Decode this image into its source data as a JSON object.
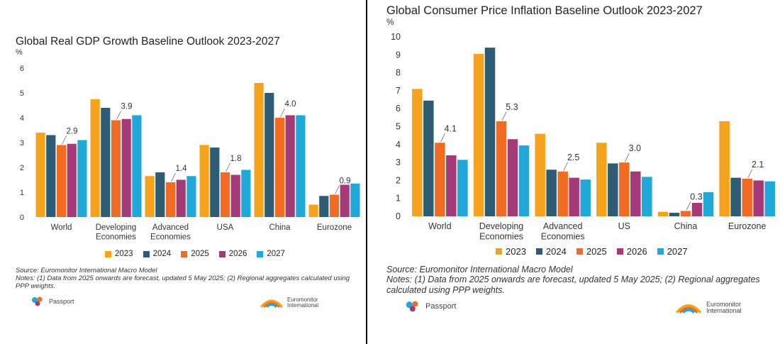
{
  "charts": [
    {
      "title": "Global Real GDP Growth Baseline Outlook 2023-2027",
      "unit": "%",
      "source": "Source: Euromonitor International Macro Model",
      "notes": "Notes: (1) Data from 2025 onwards are forecast, updated 5 May 2025; (2) Regional aggregates calculated using PPP weights.",
      "logos": {
        "passport": "Passport",
        "euromonitor_line1": "Euromonitor",
        "euromonitor_line2": "International"
      }
    },
    {
      "title": "Global Consumer Price Inflation Baseline Outlook 2023-2027",
      "unit": "%",
      "source": "Source: Euromonitor International Macro Model",
      "notes": "Notes: (1) Data from 2025 onwards are forecast, updated 5 May 2025; (2) Regional aggregates calculated using PPP weights.",
      "logos": {
        "passport": "Passport",
        "euromonitor_line1": "Euromonitor",
        "euromonitor_line2": "International"
      }
    }
  ],
  "chart_data": [
    {
      "type": "bar",
      "title": "Global Real GDP Growth Baseline Outlook 2023-2027",
      "ylabel": "%",
      "categories": [
        "World",
        "Developing\nEconomies",
        "Advanced\nEconomies",
        "USA",
        "China",
        "Eurozone"
      ],
      "ylim": [
        0,
        6
      ],
      "yticks": [
        0,
        1,
        2,
        3,
        4,
        5,
        6
      ],
      "grid": false,
      "legend_position": "bottom",
      "series": [
        {
          "name": "2023",
          "color": "#F5A21D",
          "values": [
            3.4,
            4.75,
            1.65,
            2.9,
            5.4,
            0.5
          ]
        },
        {
          "name": "2024",
          "color": "#2E5C74",
          "values": [
            3.3,
            4.4,
            1.8,
            2.8,
            5.0,
            0.85
          ]
        },
        {
          "name": "2025",
          "color": "#F26B22",
          "values": [
            2.9,
            3.9,
            1.4,
            1.8,
            4.0,
            0.9
          ]
        },
        {
          "name": "2026",
          "color": "#A43A78",
          "values": [
            2.95,
            3.95,
            1.5,
            1.7,
            4.1,
            1.3
          ]
        },
        {
          "name": "2027",
          "color": "#1FA8D8",
          "values": [
            3.1,
            4.1,
            1.65,
            1.9,
            4.1,
            1.35
          ]
        }
      ],
      "annotations": [
        {
          "category_index": 0,
          "series": "2025",
          "label": "2.9"
        },
        {
          "category_index": 1,
          "series": "2025",
          "label": "3.9"
        },
        {
          "category_index": 2,
          "series": "2025",
          "label": "1.4"
        },
        {
          "category_index": 3,
          "series": "2025",
          "label": "1.8"
        },
        {
          "category_index": 4,
          "series": "2025",
          "label": "4.0"
        },
        {
          "category_index": 5,
          "series": "2025",
          "label": "0.9"
        }
      ]
    },
    {
      "type": "bar",
      "title": "Global Consumer Price Inflation Baseline Outlook 2023-2027",
      "ylabel": "%",
      "categories": [
        "World",
        "Developing\nEconomies",
        "Advanced\nEconomies",
        "US",
        "China",
        "Eurozone"
      ],
      "ylim": [
        0,
        10
      ],
      "yticks": [
        0,
        1,
        2,
        3,
        4,
        5,
        6,
        7,
        8,
        9,
        10
      ],
      "grid": false,
      "legend_position": "bottom",
      "series": [
        {
          "name": "2023",
          "color": "#F5A21D",
          "values": [
            7.1,
            9.05,
            4.6,
            4.1,
            0.25,
            5.3
          ]
        },
        {
          "name": "2024",
          "color": "#2E5C74",
          "values": [
            6.45,
            9.4,
            2.6,
            2.95,
            0.2,
            2.15
          ]
        },
        {
          "name": "2025",
          "color": "#F26B22",
          "values": [
            4.1,
            5.3,
            2.5,
            3.0,
            0.3,
            2.1
          ]
        },
        {
          "name": "2026",
          "color": "#A43A78",
          "values": [
            3.4,
            4.3,
            2.15,
            2.5,
            0.75,
            2.0
          ]
        },
        {
          "name": "2027",
          "color": "#1FA8D8",
          "values": [
            3.15,
            3.95,
            2.05,
            2.2,
            1.35,
            1.95
          ]
        }
      ],
      "annotations": [
        {
          "category_index": 0,
          "series": "2025",
          "label": "4.1"
        },
        {
          "category_index": 1,
          "series": "2025",
          "label": "5.3"
        },
        {
          "category_index": 2,
          "series": "2025",
          "label": "2.5"
        },
        {
          "category_index": 3,
          "series": "2025",
          "label": "3.0"
        },
        {
          "category_index": 4,
          "series": "2025",
          "label": "0.3"
        },
        {
          "category_index": 5,
          "series": "2025",
          "label": "2.1"
        }
      ]
    }
  ]
}
